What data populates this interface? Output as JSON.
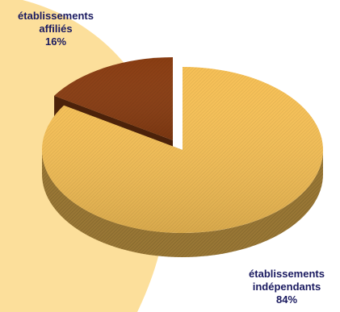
{
  "chart_data": {
    "type": "pie",
    "title": "",
    "slices": [
      {
        "category": "établissements affiliés",
        "value": 16,
        "value_label": "16%",
        "color": "#8a3d12"
      },
      {
        "category": "établissements indépendants",
        "value": 84,
        "value_label": "84%",
        "color": "#f6c056"
      }
    ],
    "style": "3d-tilted",
    "exploded_slice": "établissements affiliés",
    "background_color": "#ffffff",
    "decoration_color": "#fcd98a",
    "label_color": "#1a1a60"
  },
  "labels": {
    "affilies": {
      "line1": "établissements",
      "line2": "affiliés",
      "pct": "16%"
    },
    "independants": {
      "line1": "établissements",
      "line2": "indépendants",
      "pct": "84%"
    }
  }
}
